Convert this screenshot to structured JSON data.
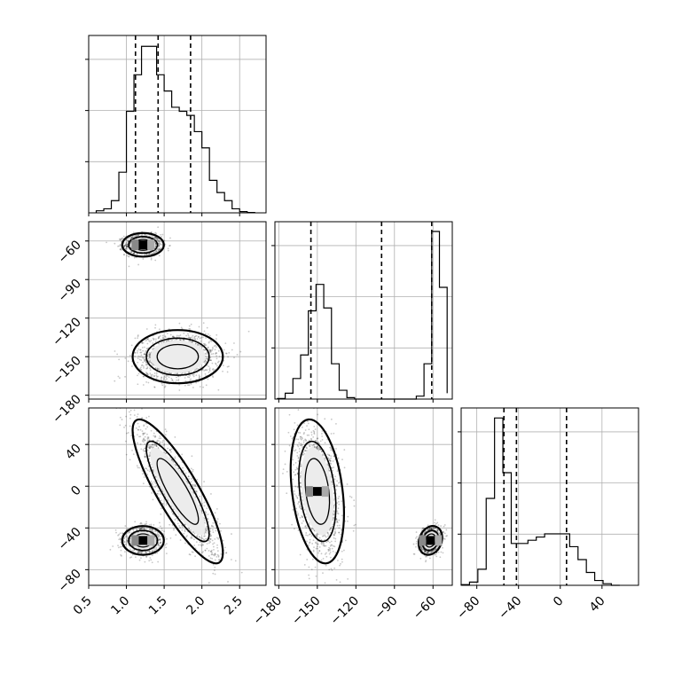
{
  "chart_data": {
    "type": "corner",
    "parameters": [
      {
        "id": "p0",
        "range": [
          0.5,
          2.85
        ],
        "ticks": [
          0.5,
          1.0,
          1.5,
          2.0,
          2.5
        ],
        "tick_labels": [
          "0.5",
          "1.0",
          "1.5",
          "2.0",
          "2.5"
        ]
      },
      {
        "id": "p1",
        "range": [
          -183,
          -45
        ],
        "ticks": [
          -180,
          -150,
          -120,
          -90,
          -60
        ],
        "tick_labels": [
          "−180",
          "−150",
          "−120",
          "−90",
          "−60"
        ]
      },
      {
        "id": "p2",
        "range": [
          -95,
          75
        ],
        "ticks": [
          -80,
          -40,
          0,
          40
        ],
        "tick_labels": [
          "−80",
          "−40",
          "0",
          "40"
        ]
      }
    ],
    "histograms": [
      {
        "param": "p0",
        "bin_edges": [
          0.6,
          0.7,
          0.8,
          0.9,
          1.0,
          1.1,
          1.2,
          1.3,
          1.4,
          1.5,
          1.6,
          1.7,
          1.8,
          1.9,
          2.0,
          2.1,
          2.2,
          2.3,
          2.4,
          2.5,
          2.6,
          2.7
        ],
        "counts": [
          0.5,
          1,
          3,
          10,
          25,
          34,
          41,
          41,
          34,
          30,
          26,
          25,
          24,
          20,
          16,
          8,
          5,
          3,
          1,
          0.3,
          0.1
        ],
        "ymax": 42,
        "quantiles": [
          1.12,
          1.42,
          1.85
        ]
      },
      {
        "param": "p1",
        "bin_edges": [
          -181,
          -175,
          -169,
          -163,
          -157,
          -151,
          -145,
          -139,
          -133,
          -127,
          -121,
          -115,
          -109,
          -103,
          -97,
          -91,
          -85,
          -79,
          -73,
          -67,
          -61,
          -55,
          -49
        ],
        "counts": [
          0.2,
          2,
          7,
          15,
          30,
          39,
          31,
          12,
          3,
          0.5,
          0,
          0,
          0,
          0,
          0,
          0,
          0,
          0,
          1,
          12,
          57,
          38,
          2
        ],
        "ymax": 58,
        "quantiles": [
          -155,
          -100,
          -61
        ]
      },
      {
        "param": "p2",
        "bin_edges": [
          -95,
          -87,
          -79,
          -71,
          -63,
          -55,
          -47,
          -39,
          -31,
          -23,
          -15,
          -7,
          1,
          9,
          17,
          25,
          33,
          41,
          49,
          57
        ],
        "counts": [
          0.2,
          1,
          5,
          27,
          52,
          35,
          13,
          13,
          14,
          15,
          16,
          16,
          16,
          12,
          8,
          4,
          1.5,
          0.5,
          0
        ],
        "ymax": 53,
        "quantiles": [
          -54,
          -42,
          6
        ]
      }
    ],
    "scatter": [
      {
        "x": "p0",
        "y": "p1",
        "modes": [
          {
            "center": [
              1.22,
              -63
            ],
            "sd": [
              0.12,
              4
            ],
            "rho": 0.0,
            "weight": 0.42
          },
          {
            "center": [
              1.68,
              -150
            ],
            "sd": [
              0.26,
              9
            ],
            "rho": 0.0,
            "weight": 0.58
          }
        ]
      },
      {
        "x": "p0",
        "y": "p2",
        "modes": [
          {
            "center": [
              1.22,
              -52
            ],
            "sd": [
              0.12,
              6
            ],
            "rho": 0.0,
            "weight": 0.42
          },
          {
            "center": [
              1.68,
              -5
            ],
            "sd": [
              0.26,
              30
            ],
            "rho": -0.85,
            "weight": 0.58
          }
        ]
      },
      {
        "x": "p1",
        "y": "p2",
        "modes": [
          {
            "center": [
              -150,
              -5
            ],
            "sd": [
              9,
              30
            ],
            "rho": -0.3,
            "weight": 0.58
          },
          {
            "center": [
              -62,
              -52
            ],
            "sd": [
              4,
              6
            ],
            "rho": 0.2,
            "weight": 0.42
          }
        ]
      }
    ]
  }
}
